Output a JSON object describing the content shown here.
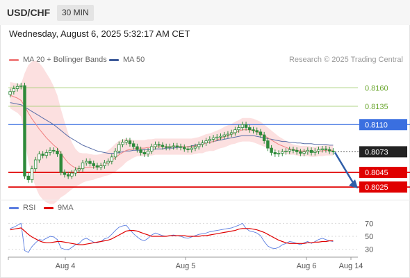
{
  "header": {
    "symbol": "USD/CHF",
    "timeframe": "30 MIN"
  },
  "subheader": {
    "datetime": "Wednesday, August 6, 2025 5:32:17 AM CET",
    "credit": "Research © 2025 Trading Central"
  },
  "legend": {
    "bb_label": "MA 20 + Bollinger Bands",
    "ma50_label": "MA 50",
    "rsi_label": "RSI",
    "ma9_label": "9MA"
  },
  "colors": {
    "candle": "#2e8a3a",
    "ma20": "#f08080",
    "band_fill": "#fcdada",
    "ma50": "#5a6ea8",
    "support": "#e00000",
    "resistance_green": "#a6cf76",
    "resistance_blue": "#3a6fe0",
    "price_tag": "#222222",
    "rsi": "#5a7de0",
    "rsi_ma": "#e00000",
    "arrow": "#2f5ea8"
  },
  "chart_data": [
    {
      "type": "candlestick",
      "title": "USD/CHF",
      "timeframe": "30 MIN",
      "ylim": [
        0.801,
        0.8185
      ],
      "x_ticks": [
        "Aug 4",
        "Aug 5",
        "Aug 6",
        "Aug 14"
      ],
      "levels": [
        {
          "value": 0.816,
          "label": "0.8160",
          "kind": "resistance"
        },
        {
          "value": 0.8135,
          "label": "0.8135",
          "kind": "resistance"
        },
        {
          "value": 0.811,
          "label": "0.8110",
          "kind": "resistance-key"
        },
        {
          "value": 0.8045,
          "label": "0.8045",
          "kind": "support"
        },
        {
          "value": 0.8025,
          "label": "0.8025",
          "kind": "support"
        }
      ],
      "last_price": {
        "value": 0.8073,
        "label": "0.8073"
      },
      "close": [
        0.8155,
        0.8159,
        0.8162,
        0.8163,
        0.804,
        0.8035,
        0.805,
        0.8062,
        0.807,
        0.8068,
        0.8072,
        0.8075,
        0.8074,
        0.807,
        0.8045,
        0.8042,
        0.804,
        0.8044,
        0.8048,
        0.805,
        0.8058,
        0.806,
        0.8057,
        0.8054,
        0.8052,
        0.8054,
        0.8058,
        0.806,
        0.8066,
        0.8074,
        0.8083,
        0.8086,
        0.8088,
        0.8084,
        0.808,
        0.8076,
        0.8072,
        0.807,
        0.8074,
        0.808,
        0.8083,
        0.8082,
        0.808,
        0.8079,
        0.808,
        0.8081,
        0.808,
        0.8079,
        0.8077,
        0.8076,
        0.8078,
        0.808,
        0.8083,
        0.8085,
        0.8088,
        0.809,
        0.8092,
        0.8093,
        0.8094,
        0.8096,
        0.8097,
        0.8099,
        0.8103,
        0.8106,
        0.811,
        0.8106,
        0.8103,
        0.8102,
        0.81,
        0.8096,
        0.8088,
        0.8078,
        0.8072,
        0.807,
        0.8071,
        0.8073,
        0.8074,
        0.8076,
        0.8075,
        0.8073,
        0.8071,
        0.8073,
        0.8075,
        0.8072,
        0.8074,
        0.8076,
        0.8077,
        0.8076,
        0.8074,
        0.8073
      ],
      "ma20": [
        0.815,
        0.8148,
        0.8146,
        0.8143,
        0.8135,
        0.8126,
        0.8118,
        0.8111,
        0.8104,
        0.8098,
        0.8092,
        0.8087,
        0.8082,
        0.8078,
        0.8071,
        0.8064,
        0.8058,
        0.8054,
        0.8051,
        0.805,
        0.8051,
        0.8052,
        0.8052,
        0.8052,
        0.8053,
        0.8054,
        0.8056,
        0.8058,
        0.8061,
        0.8065,
        0.8069,
        0.8072,
        0.8075,
        0.8076,
        0.8077,
        0.8078,
        0.8078,
        0.8078,
        0.8079,
        0.8079,
        0.808,
        0.808,
        0.808,
        0.808,
        0.808,
        0.808,
        0.808,
        0.808,
        0.808,
        0.808,
        0.808,
        0.8081,
        0.8082,
        0.8083,
        0.8085,
        0.8086,
        0.8087,
        0.8089,
        0.8091,
        0.8093,
        0.8095,
        0.8097,
        0.8099,
        0.8101,
        0.8103,
        0.8103,
        0.8103,
        0.8102,
        0.81,
        0.8098,
        0.8095,
        0.8092,
        0.8089,
        0.8086,
        0.8083,
        0.8081,
        0.8079,
        0.8077,
        0.8076,
        0.8075,
        0.8074,
        0.8074,
        0.8074,
        0.8073,
        0.8073,
        0.8074,
        0.8074,
        0.8075,
        0.8075,
        0.8075
      ],
      "ma50": [
        0.814,
        0.8139,
        0.8138,
        0.8137,
        0.8134,
        0.8131,
        0.8128,
        0.8125,
        0.8122,
        0.8119,
        0.8116,
        0.8113,
        0.811,
        0.8106,
        0.8102,
        0.8098,
        0.8094,
        0.8091,
        0.8088,
        0.8085,
        0.8082,
        0.808,
        0.8078,
        0.8076,
        0.8074,
        0.8073,
        0.8072,
        0.8071,
        0.8071,
        0.8071,
        0.8072,
        0.8073,
        0.8074,
        0.8074,
        0.8075,
        0.8075,
        0.8075,
        0.8076,
        0.8076,
        0.8076,
        0.8077,
        0.8077,
        0.8077,
        0.8078,
        0.8078,
        0.8078,
        0.8079,
        0.8079,
        0.808,
        0.808,
        0.8081,
        0.8082,
        0.8083,
        0.8084,
        0.8085,
        0.8086,
        0.8087,
        0.8088,
        0.8089,
        0.809,
        0.8091,
        0.8092,
        0.8093,
        0.8094,
        0.8095,
        0.8095,
        0.8095,
        0.8095,
        0.8094,
        0.8093,
        0.8092,
        0.8091,
        0.809,
        0.8089,
        0.8088,
        0.8087,
        0.8087,
        0.8086,
        0.8086,
        0.8085,
        0.8085,
        0.8084,
        0.8084,
        0.8084,
        0.8083,
        0.8083,
        0.8083,
        0.8083,
        0.8082,
        0.8082
      ],
      "bb_width": [
        0.0018,
        0.0019,
        0.002,
        0.0022,
        0.0045,
        0.0065,
        0.0078,
        0.0086,
        0.009,
        0.009,
        0.0088,
        0.0085,
        0.008,
        0.0072,
        0.006,
        0.005,
        0.004,
        0.0032,
        0.0026,
        0.0022,
        0.002,
        0.0019,
        0.0018,
        0.0017,
        0.0016,
        0.0016,
        0.0016,
        0.0017,
        0.0018,
        0.0019,
        0.0019,
        0.0018,
        0.0016,
        0.0014,
        0.0012,
        0.0011,
        0.0011,
        0.0011,
        0.0011,
        0.0011,
        0.0011,
        0.0011,
        0.0011,
        0.0011,
        0.0011,
        0.0011,
        0.0011,
        0.0011,
        0.0011,
        0.0011,
        0.0011,
        0.0011,
        0.0011,
        0.0012,
        0.0012,
        0.0012,
        0.0013,
        0.0013,
        0.0013,
        0.0014,
        0.0014,
        0.0014,
        0.0015,
        0.0015,
        0.0016,
        0.0016,
        0.0016,
        0.0016,
        0.0016,
        0.0016,
        0.0015,
        0.0014,
        0.0013,
        0.0012,
        0.0011,
        0.001,
        0.0009,
        0.0008,
        0.0007,
        0.0007,
        0.0007,
        0.0007,
        0.0007,
        0.0007,
        0.0007,
        0.0007,
        0.0007,
        0.0007,
        0.0007,
        0.0007
      ],
      "forecast": {
        "from": 0.8073,
        "to": 0.8025,
        "direction": "down"
      }
    },
    {
      "type": "line",
      "title": "RSI",
      "ylim": [
        20,
        80
      ],
      "y_ticks": [
        70,
        50,
        30
      ],
      "series": [
        {
          "name": "RSI",
          "values": [
            62,
            64,
            67,
            70,
            28,
            25,
            34,
            40,
            45,
            44,
            47,
            50,
            49,
            45,
            32,
            30,
            29,
            33,
            37,
            39,
            45,
            47,
            44,
            41,
            40,
            42,
            46,
            48,
            53,
            59,
            64,
            66,
            67,
            60,
            54,
            49,
            45,
            43,
            47,
            52,
            55,
            53,
            51,
            50,
            51,
            52,
            51,
            50,
            48,
            47,
            49,
            51,
            53,
            54,
            55,
            57,
            58,
            59,
            60,
            61,
            62,
            63,
            65,
            67,
            70,
            62,
            58,
            57,
            55,
            51,
            42,
            35,
            32,
            31,
            33,
            37,
            39,
            42,
            41,
            39,
            37,
            40,
            42,
            39,
            42,
            45,
            47,
            45,
            43,
            42
          ]
        },
        {
          "name": "9MA",
          "values": [
            60,
            61,
            62,
            63,
            58,
            53,
            49,
            46,
            43,
            41,
            40,
            40,
            41,
            42,
            42,
            41,
            40,
            39,
            38,
            37,
            37,
            38,
            39,
            40,
            41,
            42,
            43,
            44,
            46,
            49,
            52,
            55,
            58,
            59,
            59,
            58,
            56,
            54,
            52,
            50,
            50,
            50,
            50,
            50,
            51,
            51,
            51,
            51,
            51,
            50,
            50,
            50,
            50,
            51,
            51,
            52,
            53,
            54,
            55,
            56,
            57,
            58,
            59,
            61,
            62,
            62,
            62,
            61,
            60,
            58,
            56,
            53,
            50,
            47,
            44,
            42,
            40,
            39,
            39,
            39,
            39,
            39,
            40,
            40,
            41,
            41,
            42,
            42,
            43,
            43
          ]
        }
      ]
    }
  ]
}
